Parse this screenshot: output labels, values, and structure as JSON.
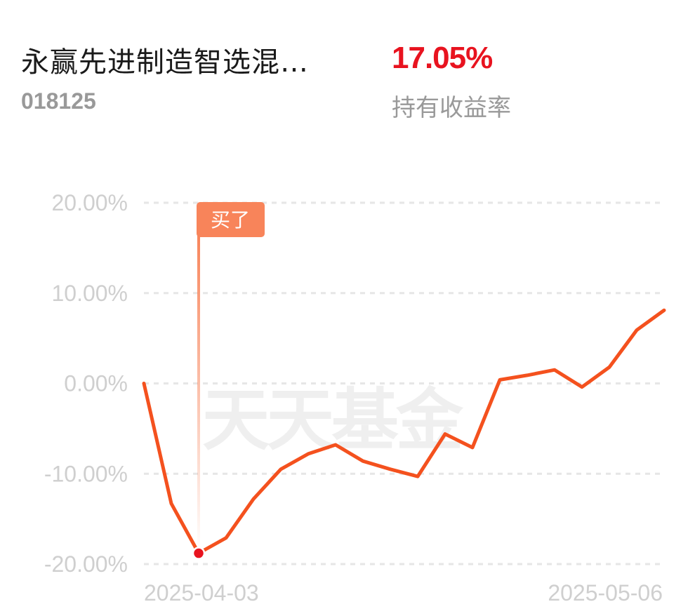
{
  "header": {
    "fund_name": "永赢先进制造智选混…",
    "fund_code": "018125",
    "return_value": "17.05%",
    "return_label": "持有收益率"
  },
  "watermark": "天天基金",
  "colors": {
    "line": "#f4511e",
    "return_value": "#e8131f",
    "marker_bg": "#f8845a",
    "grid": "#e6e6e6",
    "tick": "#cfcfcf"
  },
  "chart_data": {
    "type": "line",
    "title": "",
    "xlabel": "",
    "ylabel": "",
    "ylim": [
      -20,
      20
    ],
    "y_ticks": [
      "20.00%",
      "10.00%",
      "0.00%",
      "-10.00%",
      "-20.00%"
    ],
    "y_tick_values": [
      20,
      10,
      0,
      -10,
      -20
    ],
    "x_tick_labels": [
      "2025-04-03",
      "2025-05-06"
    ],
    "grid": "horizontal-dashed",
    "series": [
      {
        "values": [
          0.0,
          -13.3,
          -18.8,
          -17.1,
          -12.8,
          -9.5,
          -7.8,
          -6.8,
          -8.6,
          -9.5,
          -10.3,
          -5.6,
          -7.1,
          0.4,
          0.9,
          1.5,
          -0.4,
          1.8,
          5.9,
          8.1
        ]
      }
    ],
    "annotation": {
      "label": "买了",
      "point_index": 2,
      "value": -18.8
    }
  }
}
